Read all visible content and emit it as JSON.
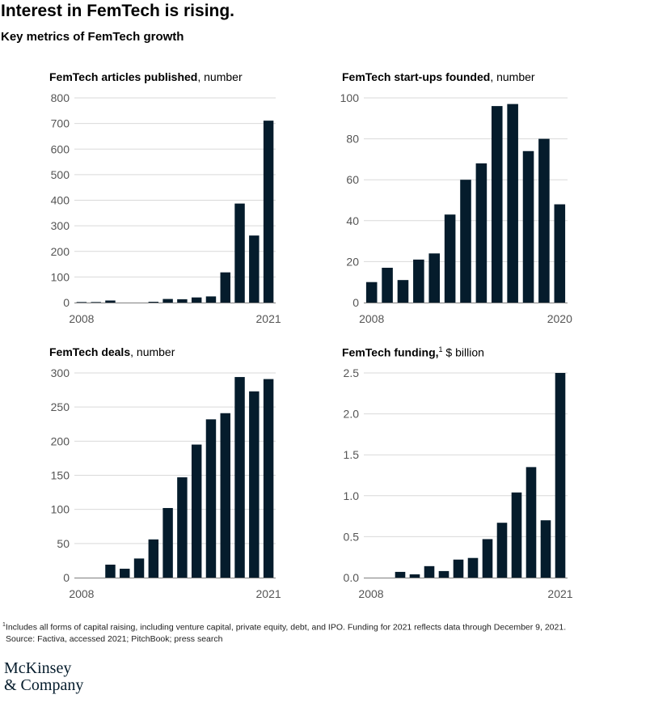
{
  "header": {
    "title": "Interest in FemTech is rising.",
    "subtitle": "Key metrics of FemTech growth"
  },
  "chart_data": [
    {
      "type": "bar",
      "title": "FemTech articles published",
      "unit": "number",
      "footnote_marker": "",
      "x_start_label": "2008",
      "x_end_label": "2021",
      "categories": [
        "2008",
        "2009",
        "2010",
        "2011",
        "2012",
        "2013",
        "2014",
        "2015",
        "2016",
        "2017",
        "2018",
        "2019",
        "2020",
        "2021"
      ],
      "values": [
        2,
        2,
        8,
        0,
        0,
        3,
        14,
        13,
        20,
        24,
        118,
        387,
        262,
        711
      ],
      "ylim": [
        0,
        800
      ],
      "yticks": [
        0,
        100,
        200,
        300,
        400,
        500,
        600,
        700,
        800
      ],
      "ytick_labels": [
        "0",
        "100",
        "200",
        "300",
        "400",
        "500",
        "600",
        "700",
        "800"
      ]
    },
    {
      "type": "bar",
      "title": "FemTech start-ups founded",
      "unit": "number",
      "footnote_marker": "",
      "x_start_label": "2008",
      "x_end_label": "2020",
      "categories": [
        "2008",
        "2009",
        "2010",
        "2011",
        "2012",
        "2013",
        "2014",
        "2015",
        "2016",
        "2017",
        "2018",
        "2019",
        "2020"
      ],
      "values": [
        10,
        17,
        11,
        21,
        24,
        43,
        60,
        68,
        96,
        97,
        74,
        80,
        48
      ],
      "ylim": [
        0,
        100
      ],
      "yticks": [
        0,
        20,
        40,
        60,
        80,
        100
      ],
      "ytick_labels": [
        "0",
        "20",
        "40",
        "60",
        "80",
        "100"
      ]
    },
    {
      "type": "bar",
      "title": "FemTech deals",
      "unit": "number",
      "footnote_marker": "",
      "x_start_label": "2008",
      "x_end_label": "2021",
      "categories": [
        "2008",
        "2009",
        "2010",
        "2011",
        "2012",
        "2013",
        "2014",
        "2015",
        "2016",
        "2017",
        "2018",
        "2019",
        "2020",
        "2021"
      ],
      "values": [
        0,
        0,
        19,
        13,
        28,
        56,
        102,
        147,
        195,
        232,
        241,
        294,
        273,
        291
      ],
      "ylim": [
        0,
        300
      ],
      "yticks": [
        0,
        50,
        100,
        150,
        200,
        250,
        300
      ],
      "ytick_labels": [
        "0",
        "50",
        "100",
        "150",
        "200",
        "250",
        "300"
      ]
    },
    {
      "type": "bar",
      "title": "FemTech funding,",
      "unit": "$ billion",
      "footnote_marker": "1",
      "x_start_label": "2008",
      "x_end_label": "2021",
      "categories": [
        "2008",
        "2009",
        "2010",
        "2011",
        "2012",
        "2013",
        "2014",
        "2015",
        "2016",
        "2017",
        "2018",
        "2019",
        "2020",
        "2021"
      ],
      "values": [
        0,
        0,
        0.07,
        0.04,
        0.14,
        0.08,
        0.22,
        0.24,
        0.47,
        0.67,
        1.04,
        1.35,
        0.7,
        2.5
      ],
      "ylim": [
        0,
        2.5
      ],
      "yticks": [
        0,
        0.5,
        1.0,
        1.5,
        2.0,
        2.5
      ],
      "ytick_labels": [
        "0.0",
        "0.5",
        "1.0",
        "1.5",
        "2.0",
        "2.5"
      ]
    }
  ],
  "footnote": {
    "marker": "1",
    "text": "Includes all forms of capital raising, including venture capital, private equity, debt, and IPO. Funding for 2021 reflects data through December 9, 2021.",
    "source": "Source: Factiva, accessed 2021; PitchBook; press search"
  },
  "logo": {
    "line1": "McKinsey",
    "line2": "& Company"
  },
  "colors": {
    "bar": "#051c2c",
    "grid": "#d9d9d9",
    "axis": "#7f7f7f",
    "tick_text": "#555555"
  }
}
